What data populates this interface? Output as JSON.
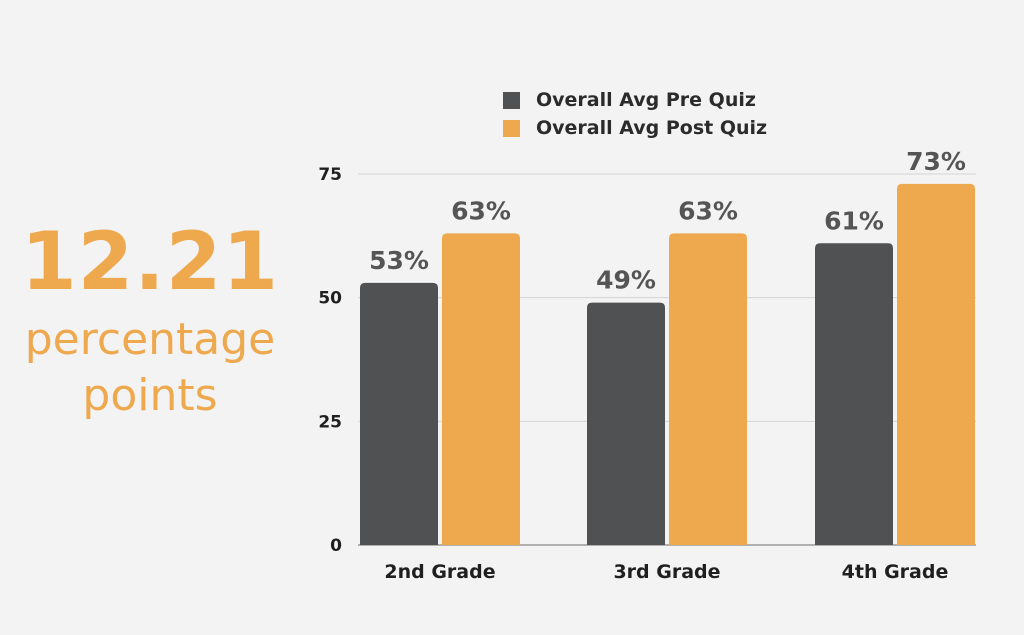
{
  "stat": {
    "value": "12.21",
    "caption_line1": "percentage",
    "caption_line2": "points"
  },
  "colors": {
    "pre": "#505153",
    "post": "#eea94f",
    "accent": "#eea94f",
    "background": "#f3f3f3",
    "grid": "#d4d4d4"
  },
  "chart_data": {
    "type": "bar",
    "categories": [
      "2nd Grade",
      "3rd Grade",
      "4th Grade"
    ],
    "series": [
      {
        "name": "Overall Avg Pre Quiz",
        "values": [
          53,
          49,
          61
        ],
        "labels": [
          "53%",
          "49%",
          "61%"
        ]
      },
      {
        "name": "Overall Avg Post Quiz",
        "values": [
          63,
          63,
          73
        ],
        "labels": [
          "63%",
          "63%",
          "73%"
        ]
      }
    ],
    "title": "",
    "xlabel": "",
    "ylabel": "",
    "ylim": [
      0,
      75
    ],
    "yticks": [
      0,
      25,
      50,
      75
    ],
    "grid": true,
    "legend": "top"
  }
}
